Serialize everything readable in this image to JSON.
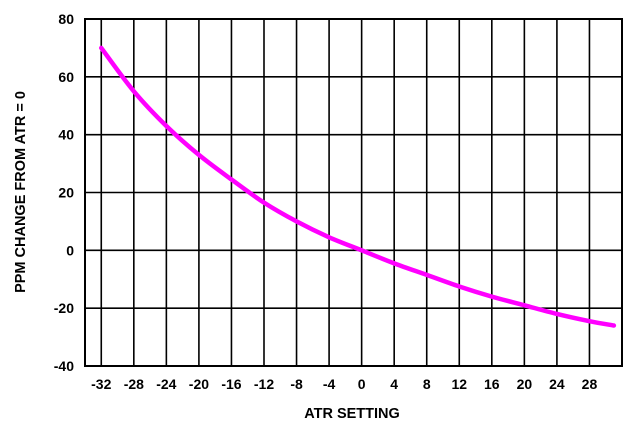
{
  "chart_data": {
    "type": "line",
    "title": "",
    "xlabel": "ATR SETTING",
    "ylabel": "PPM CHANGE FROM  ATR = 0",
    "xlim": [
      -34,
      32
    ],
    "ylim": [
      -40,
      80
    ],
    "x_ticks": [
      -32,
      -28,
      -24,
      -20,
      -16,
      -12,
      -8,
      -4,
      0,
      4,
      8,
      12,
      16,
      20,
      24,
      28
    ],
    "y_ticks": [
      -40,
      -20,
      0,
      20,
      40,
      60,
      80
    ],
    "x_tick_labels": [
      "-32",
      "-28",
      "-24",
      "-20",
      "-16",
      "-12",
      "-8",
      "-4",
      "0",
      "4",
      "8",
      "12",
      "16",
      "20",
      "24",
      "28"
    ],
    "y_tick_labels": [
      "-40",
      "-20",
      "0",
      "20",
      "40",
      "60",
      "80"
    ],
    "grid": true,
    "legend": "none",
    "series": [
      {
        "color": "#ff00ff",
        "x": [
          -32,
          -28,
          -24,
          -20,
          -16,
          -12,
          -8,
          -4,
          0,
          4,
          8,
          12,
          16,
          20,
          24,
          28,
          31
        ],
        "y": [
          70,
          55,
          43,
          33,
          24.5,
          16.5,
          10,
          4.5,
          0,
          -4.5,
          -8.5,
          -12.5,
          -16,
          -19,
          -22,
          -24.5,
          -26
        ]
      }
    ]
  }
}
